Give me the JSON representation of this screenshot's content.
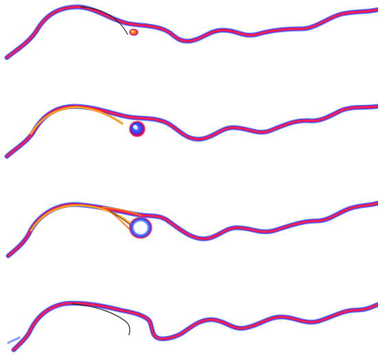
{
  "figure": {
    "panel_count": 4,
    "background": "#ffffff",
    "interface_colors": {
      "outer": "#2a55ff",
      "mid": "#d1007a",
      "core": "#ff2f45",
      "warm_mid": "#ff7a1a",
      "warm_core": "#f0c020",
      "highlight": "#ffffff",
      "ink": "#1a1a1a"
    },
    "panels": [
      {
        "name": "panel-1",
        "has_bubble": true,
        "bubble_style": "small-orange"
      },
      {
        "name": "panel-2",
        "has_bubble": true,
        "bubble_style": "blue-red"
      },
      {
        "name": "panel-3",
        "has_bubble": true,
        "bubble_style": "white-core"
      },
      {
        "name": "panel-4",
        "has_bubble": false,
        "bubble_style": "none"
      }
    ]
  }
}
